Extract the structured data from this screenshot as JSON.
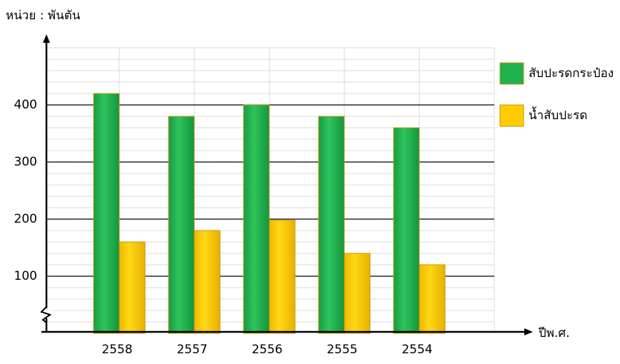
{
  "chart_data": {
    "type": "bar",
    "unit_label": "หน่วย : พันตัน",
    "x_label": "ปีพ.ศ.",
    "categories": [
      "2558",
      "2557",
      "2556",
      "2555",
      "2554"
    ],
    "series": [
      {
        "name": "สับปะรดกระป๋อง",
        "color": "#1fb14e",
        "values": [
          420,
          380,
          400,
          380,
          360
        ]
      },
      {
        "name": "น้ำสับปะรด",
        "color": "#ffcc00",
        "values": [
          160,
          180,
          198,
          140,
          120
        ]
      }
    ],
    "ylim": [
      0,
      500
    ],
    "yticks": [
      100,
      200,
      300,
      400
    ],
    "grid": true,
    "legend": "right"
  }
}
